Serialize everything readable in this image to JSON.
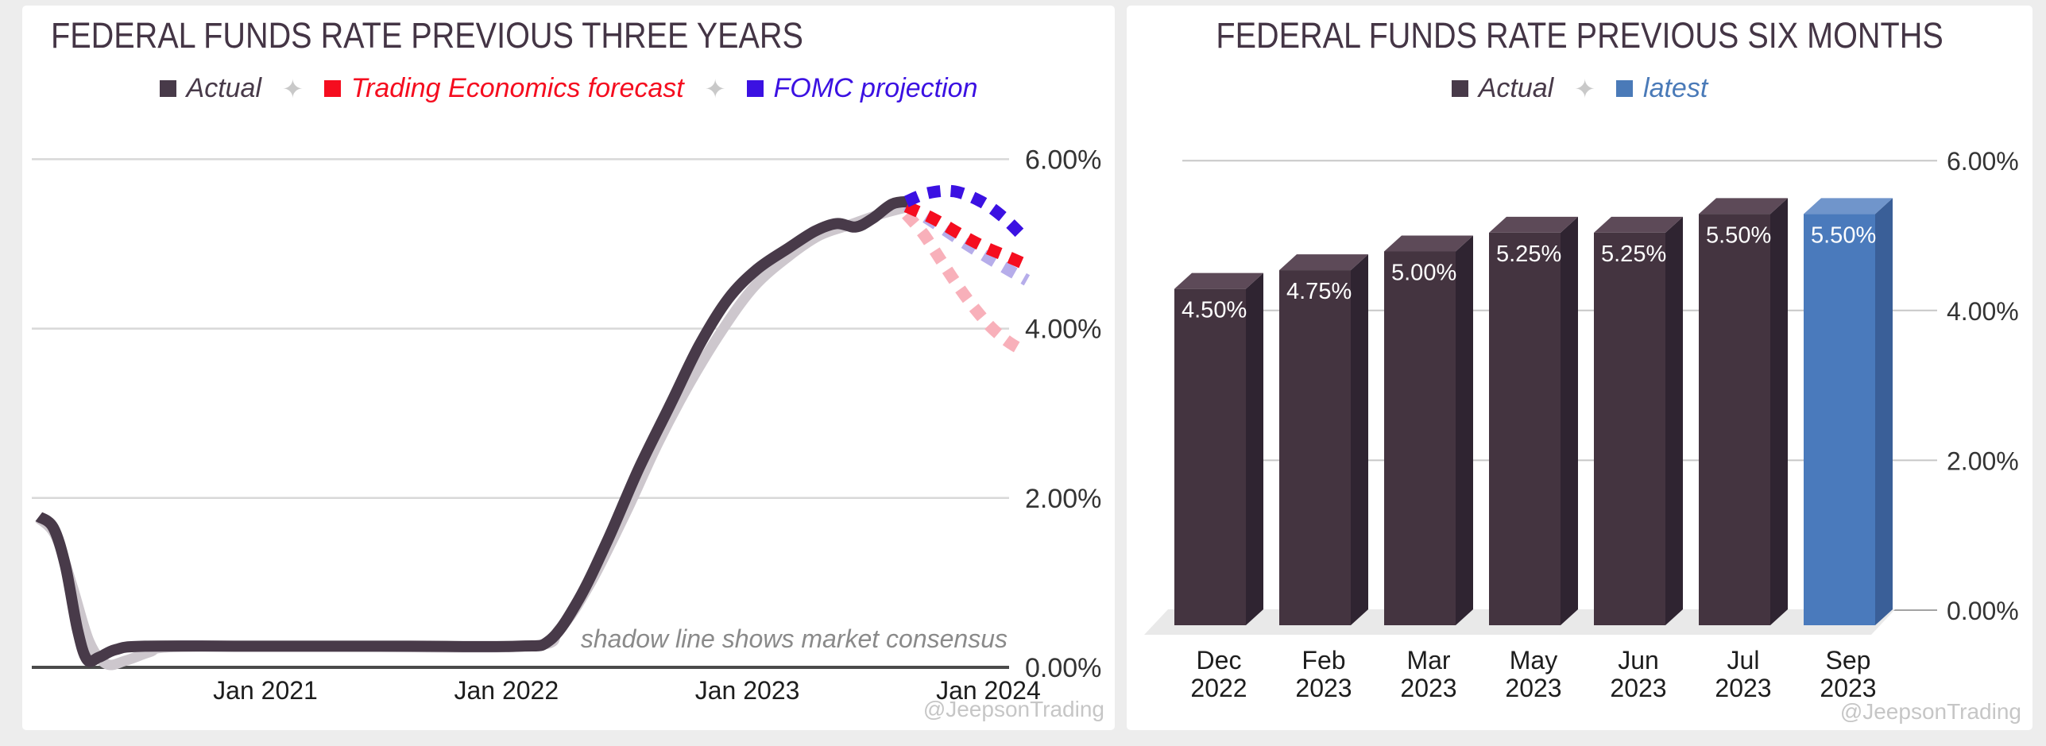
{
  "page": {
    "background": "#ededed"
  },
  "left_chart": {
    "title": "FEDERAL FUNDS RATE PREVIOUS THREE YEARS",
    "legend": {
      "separator": "✦",
      "items": [
        {
          "label": "Actual",
          "color": "#483a49"
        },
        {
          "label": "Trading Economics forecast",
          "color": "#f50d1f"
        },
        {
          "label": "FOMC projection",
          "color": "#3b11e2"
        }
      ]
    },
    "annotation": "shadow line shows market consensus",
    "watermark": "@JeepsonTrading",
    "chart_data": {
      "type": "line",
      "title": "FEDERAL FUNDS RATE PREVIOUS THREE YEARS",
      "ylim": [
        0,
        6.3
      ],
      "xlim": [
        2020.05,
        2024.25
      ],
      "grid": true,
      "legend_position": "top",
      "y_ticks": [
        {
          "label": "6.00%",
          "value": 6
        },
        {
          "label": "4.00%",
          "value": 4
        },
        {
          "label": "2.00%",
          "value": 2
        },
        {
          "label": "0.00%",
          "value": 0
        }
      ],
      "x_ticks": [
        {
          "label": "Jan 2021",
          "value": 2021.0
        },
        {
          "label": "Jan 2022",
          "value": 2022.0
        },
        {
          "label": "Jan 2023",
          "value": 2023.0
        },
        {
          "label": "Jan 2024",
          "value": 2024.0
        }
      ],
      "series": [
        {
          "name": "market consensus (shadow of actual)",
          "style": "solid",
          "color": "#cdc7cd",
          "width": 13,
          "points": [
            [
              2020.06,
              1.76
            ],
            [
              2020.13,
              1.55
            ],
            [
              2020.2,
              0.95
            ],
            [
              2020.27,
              0.3
            ],
            [
              2020.34,
              0.04
            ],
            [
              2020.42,
              0.08
            ],
            [
              2020.52,
              0.18
            ],
            [
              2020.62,
              0.24
            ],
            [
              2021.2,
              0.25
            ],
            [
              2022.08,
              0.25
            ],
            [
              2022.22,
              0.45
            ],
            [
              2022.35,
              1.0
            ],
            [
              2022.5,
              1.85
            ],
            [
              2022.63,
              2.65
            ],
            [
              2022.76,
              3.35
            ],
            [
              2022.9,
              4.0
            ],
            [
              2023.03,
              4.5
            ],
            [
              2023.17,
              4.85
            ],
            [
              2023.3,
              5.1
            ],
            [
              2023.42,
              5.22
            ],
            [
              2023.55,
              5.35
            ],
            [
              2023.67,
              5.44
            ]
          ]
        },
        {
          "name": "market consensus projection (shadow)",
          "style": "dashed",
          "color": "#f8b0ba",
          "width": 15,
          "points": [
            [
              2023.66,
              5.35
            ],
            [
              2023.73,
              5.12
            ],
            [
              2023.8,
              4.82
            ],
            [
              2023.87,
              4.52
            ],
            [
              2023.94,
              4.25
            ],
            [
              2024.01,
              4.02
            ],
            [
              2024.08,
              3.85
            ],
            [
              2024.15,
              3.73
            ]
          ]
        },
        {
          "name": "FOMC projection (shadow)",
          "style": "dashed",
          "color": "#b6adea",
          "width": 15,
          "points": [
            [
              2023.66,
              5.46
            ],
            [
              2023.77,
              5.26
            ],
            [
              2023.88,
              5.05
            ],
            [
              2023.98,
              4.87
            ],
            [
              2024.08,
              4.7
            ],
            [
              2024.16,
              4.57
            ]
          ]
        },
        {
          "name": "Actual",
          "style": "solid",
          "color": "#483a49",
          "width": 14,
          "points": [
            [
              2020.06,
              1.78
            ],
            [
              2020.12,
              1.65
            ],
            [
              2020.17,
              1.2
            ],
            [
              2020.22,
              0.45
            ],
            [
              2020.26,
              0.09
            ],
            [
              2020.31,
              0.12
            ],
            [
              2020.38,
              0.21
            ],
            [
              2020.5,
              0.25
            ],
            [
              2021.0,
              0.25
            ],
            [
              2021.6,
              0.25
            ],
            [
              2022.05,
              0.25
            ],
            [
              2022.18,
              0.32
            ],
            [
              2022.3,
              0.8
            ],
            [
              2022.42,
              1.5
            ],
            [
              2022.55,
              2.35
            ],
            [
              2022.68,
              3.1
            ],
            [
              2022.8,
              3.8
            ],
            [
              2022.92,
              4.35
            ],
            [
              2023.04,
              4.7
            ],
            [
              2023.17,
              4.95
            ],
            [
              2023.28,
              5.15
            ],
            [
              2023.37,
              5.24
            ],
            [
              2023.45,
              5.2
            ],
            [
              2023.52,
              5.3
            ],
            [
              2023.6,
              5.47
            ],
            [
              2023.67,
              5.5
            ]
          ]
        },
        {
          "name": "Trading Economics forecast",
          "style": "dashed",
          "color": "#f50d1f",
          "width": 15,
          "points": [
            [
              2023.66,
              5.44
            ],
            [
              2023.77,
              5.3
            ],
            [
              2023.88,
              5.12
            ],
            [
              2023.98,
              4.97
            ],
            [
              2024.08,
              4.85
            ],
            [
              2024.16,
              4.75
            ]
          ]
        },
        {
          "name": "FOMC projection",
          "style": "dashed",
          "color": "#3b11e2",
          "width": 15,
          "points": [
            [
              2023.66,
              5.5
            ],
            [
              2023.75,
              5.6
            ],
            [
              2023.86,
              5.62
            ],
            [
              2023.97,
              5.5
            ],
            [
              2024.06,
              5.32
            ],
            [
              2024.14,
              5.1
            ]
          ]
        }
      ]
    }
  },
  "right_chart": {
    "title": "FEDERAL FUNDS RATE PREVIOUS SIX MONTHS",
    "legend": {
      "separator": "✦",
      "items": [
        {
          "label": "Actual",
          "color": "#483a49"
        },
        {
          "label": "latest",
          "color": "#4a7ab8"
        }
      ]
    },
    "watermark": "@JeepsonTrading",
    "chart_data": {
      "type": "bar",
      "categories": [
        [
          "Dec",
          "2022"
        ],
        [
          "Feb",
          "2023"
        ],
        [
          "Mar",
          "2023"
        ],
        [
          "May",
          "2023"
        ],
        [
          "Jun",
          "2023"
        ],
        [
          "Jul",
          "2023"
        ],
        [
          "Sep",
          "2023"
        ]
      ],
      "values": [
        4.5,
        4.75,
        5.0,
        5.25,
        5.25,
        5.5,
        5.5
      ],
      "bar_labels": [
        "4.50%",
        "4.75%",
        "5.00%",
        "5.25%",
        "5.25%",
        "5.50%",
        "5.50%"
      ],
      "latest_index": 6,
      "ylim": [
        0,
        6.3
      ],
      "grid": true,
      "y_ticks": [
        {
          "label": "6.00%",
          "value": 6
        },
        {
          "label": "4.00%",
          "value": 4
        },
        {
          "label": "2.00%",
          "value": 2
        },
        {
          "label": "0.00%",
          "value": 0
        }
      ],
      "colors": {
        "actual": {
          "front": "#443440",
          "side": "#2f2431",
          "top": "#5d4a58"
        },
        "latest": {
          "front": "#4a7abc",
          "side": "#3a5f98",
          "top": "#7095cb"
        },
        "bar_label": "#ffffff",
        "floor": "#e9e9e9"
      }
    }
  }
}
